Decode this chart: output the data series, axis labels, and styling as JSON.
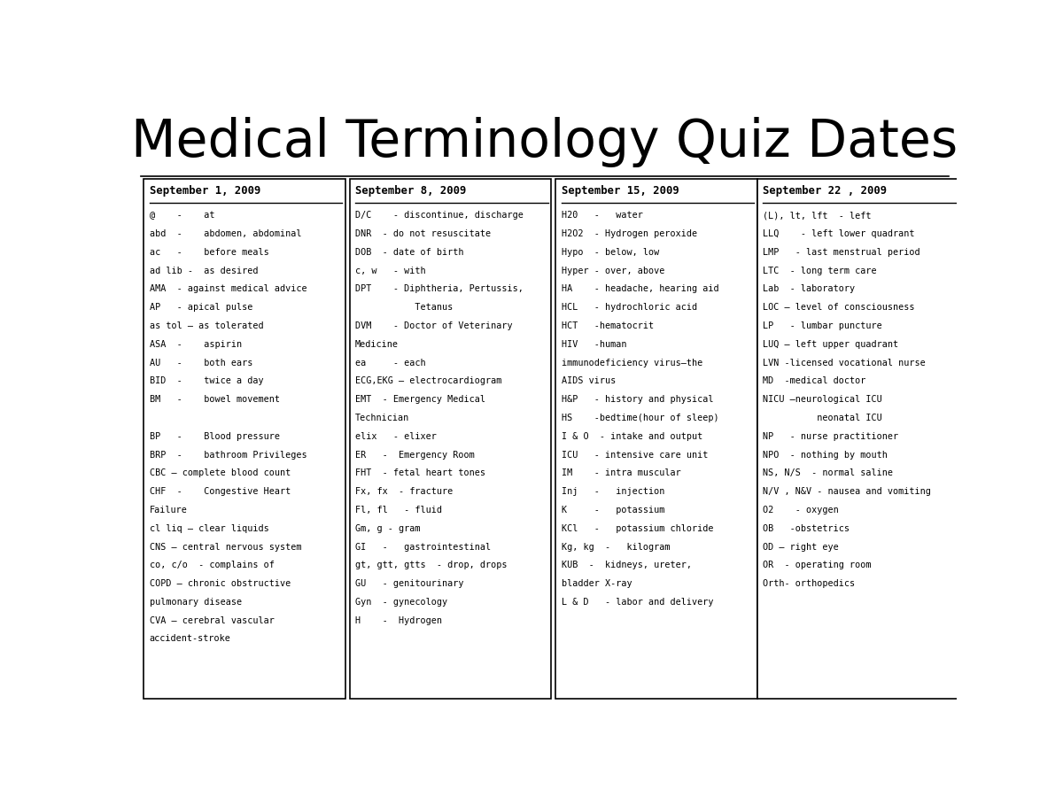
{
  "title": "Medical Terminology Quiz Dates",
  "title_fontsize": 42,
  "bg_color": "#ffffff",
  "text_color": "#000000",
  "columns": [
    {
      "header": "September 1, 2009",
      "lines": [
        "@    -    at",
        "abd  -    abdomen, abdominal",
        "ac   -    before meals",
        "ad lib -  as desired",
        "AMA  - against medical advice",
        "AP   - apical pulse",
        "as tol – as tolerated",
        "ASA  -    aspirin",
        "AU   -    both ears",
        "BID  -    twice a day",
        "BM   -    bowel movement",
        "",
        "BP   -    Blood pressure",
        "BRP  -    bathroom Privileges",
        "CBC – complete blood count",
        "CHF  -    Congestive Heart",
        "Failure",
        "cl liq – clear liquids",
        "CNS – central nervous system",
        "co, c/o  - complains of",
        "COPD – chronic obstructive",
        "pulmonary disease",
        "CVA – cerebral vascular",
        "accident-stroke"
      ]
    },
    {
      "header": "September 8, 2009",
      "lines": [
        "D/C    - discontinue, discharge",
        "DNR  - do not resuscitate",
        "DOB  - date of birth",
        "c, w   - with",
        "DPT    - Diphtheria, Pertussis,",
        "           Tetanus",
        "DVM    - Doctor of Veterinary",
        "Medicine",
        "ea     - each",
        "ECG,EKG – electrocardiogram",
        "EMT  - Emergency Medical",
        "Technician",
        "elix   - elixer",
        "ER   -  Emergency Room",
        "FHT  - fetal heart tones",
        "Fx, fx  - fracture",
        "Fl, fl   - fluid",
        "Gm, g - gram",
        "GI   -   gastrointestinal",
        "gt, gtt, gtts  - drop, drops",
        "GU   - genitourinary",
        "Gyn  - gynecology",
        "H    -  Hydrogen"
      ]
    },
    {
      "header": "September 15, 2009",
      "lines": [
        "H20   -   water",
        "H2O2  - Hydrogen peroxide",
        "Hypo  - below, low",
        "Hyper - over, above",
        "HA    - headache, hearing aid",
        "HCL   - hydrochloric acid",
        "HCT   -hematocrit",
        "HIV   -human",
        "immunodeficiency virus—the",
        "AIDS virus",
        "H&P   - history and physical",
        "HS    -bedtime(hour of sleep)",
        "I & O  - intake and output",
        "ICU   - intensive care unit",
        "IM    - intra muscular",
        "Inj   -   injection",
        "K     -   potassium",
        "KCl   -   potassium chloride",
        "Kg, kg  -   kilogram",
        "KUB  -  kidneys, ureter,",
        "bladder X-ray",
        "L & D   - labor and delivery"
      ]
    },
    {
      "header": "September 22 , 2009",
      "lines": [
        "(L), lt, lft  - left",
        "LLQ    - left lower quadrant",
        "LMP   - last menstrual period",
        "LTC  - long term care",
        "Lab  - laboratory",
        "LOC – level of consciousness",
        "LP   - lumbar puncture",
        "LUQ – left upper quadrant",
        "LVN -licensed vocational nurse",
        "MD  -medical doctor",
        "NICU –neurological ICU",
        "          neonatal ICU",
        "NP   - nurse practitioner",
        "NPO  - nothing by mouth",
        "NS, N/S  - normal saline",
        "N/V , N&V - nausea and vomiting",
        "O2    - oxygen",
        "OB   -obstetrics",
        "OD – right eye",
        "OR  - operating room",
        "Orth- orthopedics"
      ]
    }
  ]
}
